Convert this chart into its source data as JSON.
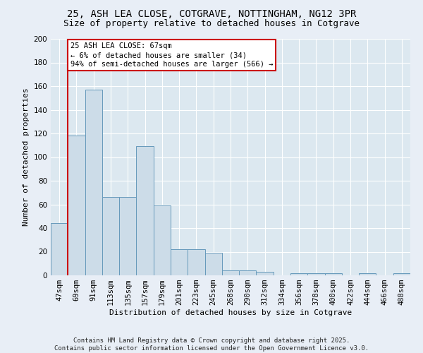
{
  "title": "25, ASH LEA CLOSE, COTGRAVE, NOTTINGHAM, NG12 3PR",
  "subtitle": "Size of property relative to detached houses in Cotgrave",
  "xlabel": "Distribution of detached houses by size in Cotgrave",
  "ylabel": "Number of detached properties",
  "bar_color": "#ccdce8",
  "bar_edge_color": "#6699bb",
  "background_color": "#dce8f0",
  "grid_color": "#ffffff",
  "annotation_box_color": "#cc0000",
  "vline_color": "#cc0000",
  "categories": [
    "47sqm",
    "69sqm",
    "91sqm",
    "113sqm",
    "135sqm",
    "157sqm",
    "179sqm",
    "201sqm",
    "223sqm",
    "245sqm",
    "268sqm",
    "290sqm",
    "312sqm",
    "334sqm",
    "356sqm",
    "378sqm",
    "400sqm",
    "422sqm",
    "444sqm",
    "466sqm",
    "488sqm"
  ],
  "values": [
    44,
    118,
    157,
    66,
    66,
    109,
    59,
    22,
    22,
    19,
    4,
    4,
    3,
    0,
    2,
    2,
    2,
    0,
    2,
    0,
    2
  ],
  "annotation_line1": "25 ASH LEA CLOSE: 67sqm",
  "annotation_line2": "← 6% of detached houses are smaller (34)",
  "annotation_line3": "94% of semi-detached houses are larger (566) →",
  "vline_x": 0.5,
  "ylim": [
    0,
    200
  ],
  "yticks": [
    0,
    20,
    40,
    60,
    80,
    100,
    120,
    140,
    160,
    180,
    200
  ],
  "footer_line1": "Contains HM Land Registry data © Crown copyright and database right 2025.",
  "footer_line2": "Contains public sector information licensed under the Open Government Licence v3.0.",
  "title_fontsize": 10,
  "subtitle_fontsize": 9,
  "axis_label_fontsize": 8,
  "tick_fontsize": 7.5,
  "annotation_fontsize": 7.5,
  "footer_fontsize": 6.5
}
